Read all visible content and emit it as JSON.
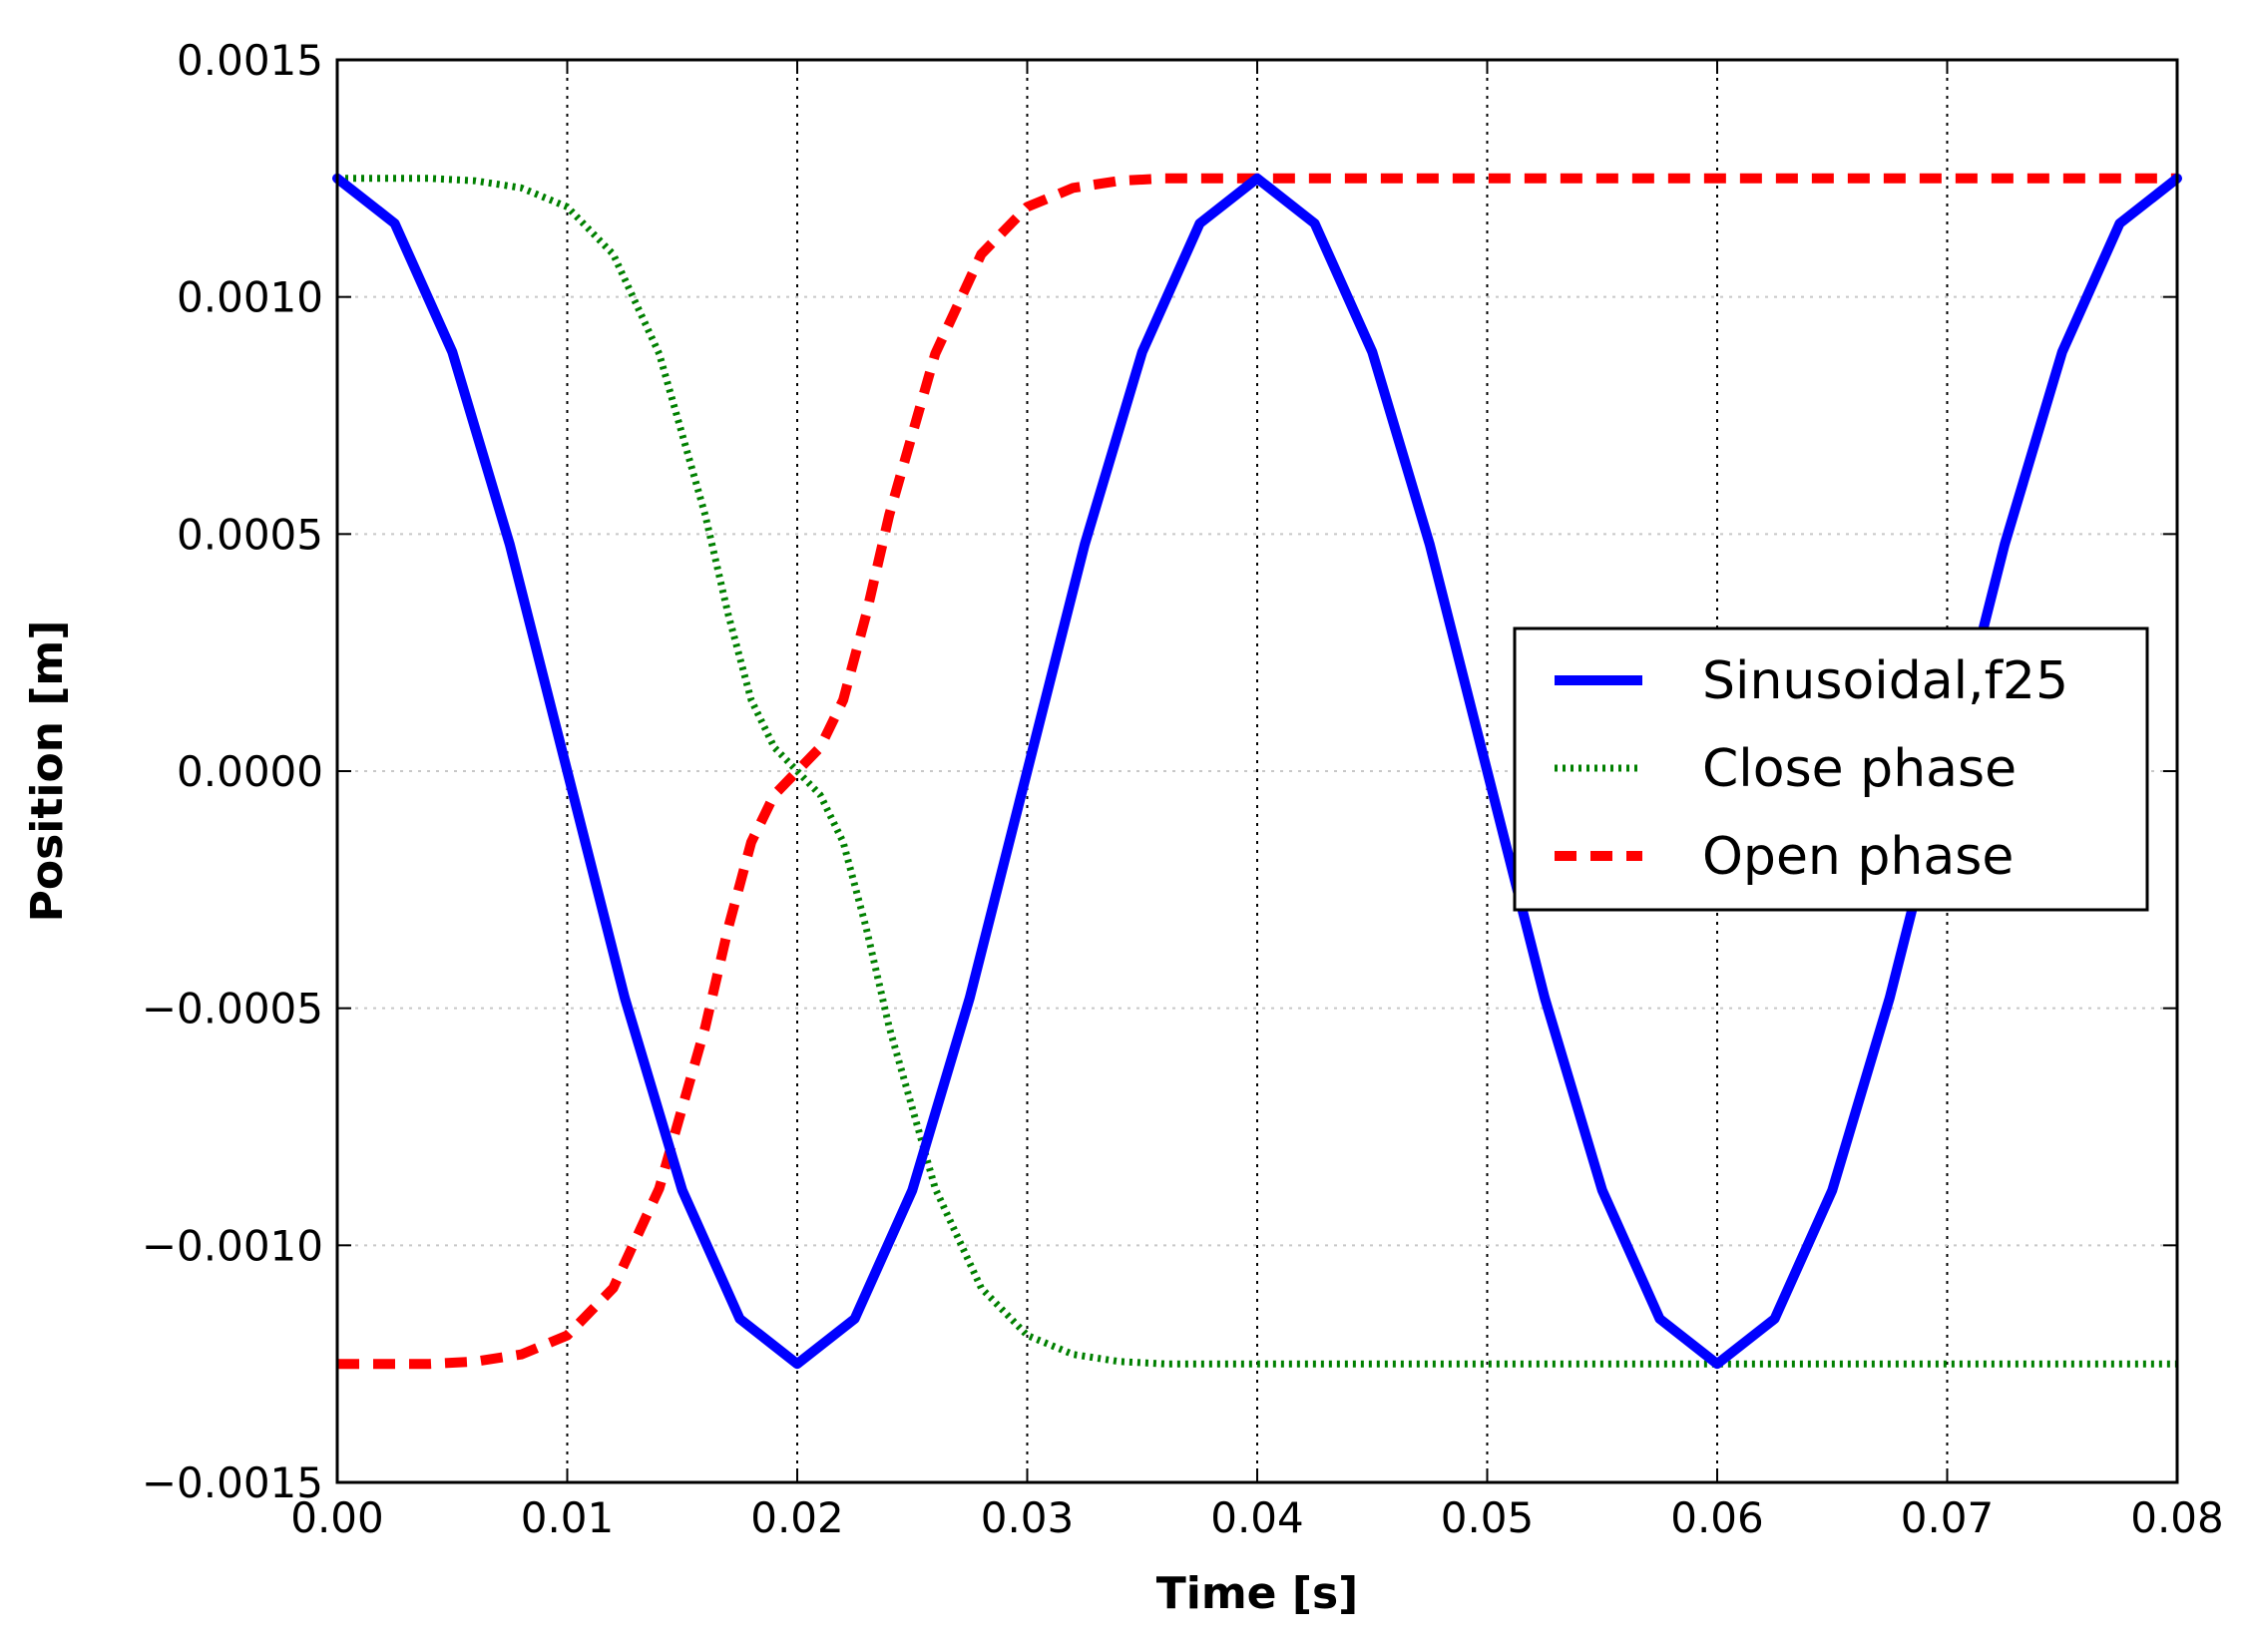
{
  "chart_data": {
    "type": "line",
    "title": "",
    "xlabel": "Time [s]",
    "ylabel": "Position [m]",
    "xlim": [
      0.0,
      0.08
    ],
    "ylim": [
      -0.0015,
      0.0015
    ],
    "grid": true,
    "legend_position": "center-right",
    "x_ticks": [
      0.0,
      0.01,
      0.02,
      0.03,
      0.04,
      0.05,
      0.06,
      0.07,
      0.08
    ],
    "x_tick_labels": [
      "0.00",
      "0.01",
      "0.02",
      "0.03",
      "0.04",
      "0.05",
      "0.06",
      "0.07",
      "0.08"
    ],
    "y_ticks": [
      -0.0015,
      -0.001,
      -0.0005,
      0.0,
      0.0005,
      0.001,
      0.0015
    ],
    "y_tick_labels": [
      "−0.0015",
      "−0.0010",
      "−0.0005",
      "0.0000",
      "0.0005",
      "0.0010",
      "0.0015"
    ],
    "series": [
      {
        "name": "Sinusoidal,f25",
        "style": "solid",
        "color": "#0000ff",
        "x": [
          0.0,
          0.0025,
          0.005,
          0.0075,
          0.01,
          0.0125,
          0.015,
          0.0175,
          0.02,
          0.0225,
          0.025,
          0.0275,
          0.03,
          0.0325,
          0.035,
          0.0375,
          0.04,
          0.0425,
          0.045,
          0.0475,
          0.05,
          0.0525,
          0.055,
          0.0575,
          0.06,
          0.0625,
          0.065,
          0.0675,
          0.07,
          0.0725,
          0.075,
          0.0775,
          0.08
        ],
        "y": [
          0.00125,
          0.001155,
          0.000884,
          0.000478,
          0.0,
          -0.000478,
          -0.000884,
          -0.001155,
          -0.00125,
          -0.001155,
          -0.000884,
          -0.000478,
          0.0,
          0.000478,
          0.000884,
          0.001155,
          0.00125,
          0.001155,
          0.000884,
          0.000478,
          0.0,
          -0.000478,
          -0.000884,
          -0.001155,
          -0.00125,
          -0.001155,
          -0.000884,
          -0.000478,
          0.0,
          0.000478,
          0.000884,
          0.001155,
          0.00125
        ]
      },
      {
        "name": "Close phase",
        "style": "dotted",
        "color": "#008000",
        "x": [
          0.0,
          0.002,
          0.004,
          0.006,
          0.008,
          0.01,
          0.012,
          0.014,
          0.016,
          0.017,
          0.018,
          0.019,
          0.02,
          0.021,
          0.022,
          0.023,
          0.024,
          0.026,
          0.028,
          0.03,
          0.032,
          0.034,
          0.036,
          0.038,
          0.04,
          0.05,
          0.06,
          0.07,
          0.08
        ],
        "y": [
          0.00125,
          0.00125,
          0.00125,
          0.001245,
          0.00123,
          0.00119,
          0.00109,
          0.00088,
          0.00054,
          0.00033,
          0.00015,
          5e-05,
          0.0,
          -5e-05,
          -0.00015,
          -0.00033,
          -0.00054,
          -0.00088,
          -0.00109,
          -0.00119,
          -0.00123,
          -0.001245,
          -0.00125,
          -0.00125,
          -0.00125,
          -0.00125,
          -0.00125,
          -0.00125,
          -0.00125
        ]
      },
      {
        "name": "Open phase",
        "style": "dashed",
        "color": "#ff0000",
        "x": [
          0.0,
          0.002,
          0.004,
          0.006,
          0.008,
          0.01,
          0.012,
          0.014,
          0.016,
          0.017,
          0.018,
          0.019,
          0.02,
          0.021,
          0.022,
          0.023,
          0.024,
          0.026,
          0.028,
          0.03,
          0.032,
          0.034,
          0.036,
          0.038,
          0.04,
          0.05,
          0.06,
          0.07,
          0.08
        ],
        "y": [
          -0.00125,
          -0.00125,
          -0.00125,
          -0.001245,
          -0.00123,
          -0.00119,
          -0.00109,
          -0.00088,
          -0.00054,
          -0.00033,
          -0.00015,
          -5e-05,
          0.0,
          5e-05,
          0.00015,
          0.00033,
          0.00054,
          0.00088,
          0.00109,
          0.00119,
          0.00123,
          0.001245,
          0.00125,
          0.00125,
          0.00125,
          0.00125,
          0.00125,
          0.00125,
          0.00125
        ]
      }
    ]
  }
}
